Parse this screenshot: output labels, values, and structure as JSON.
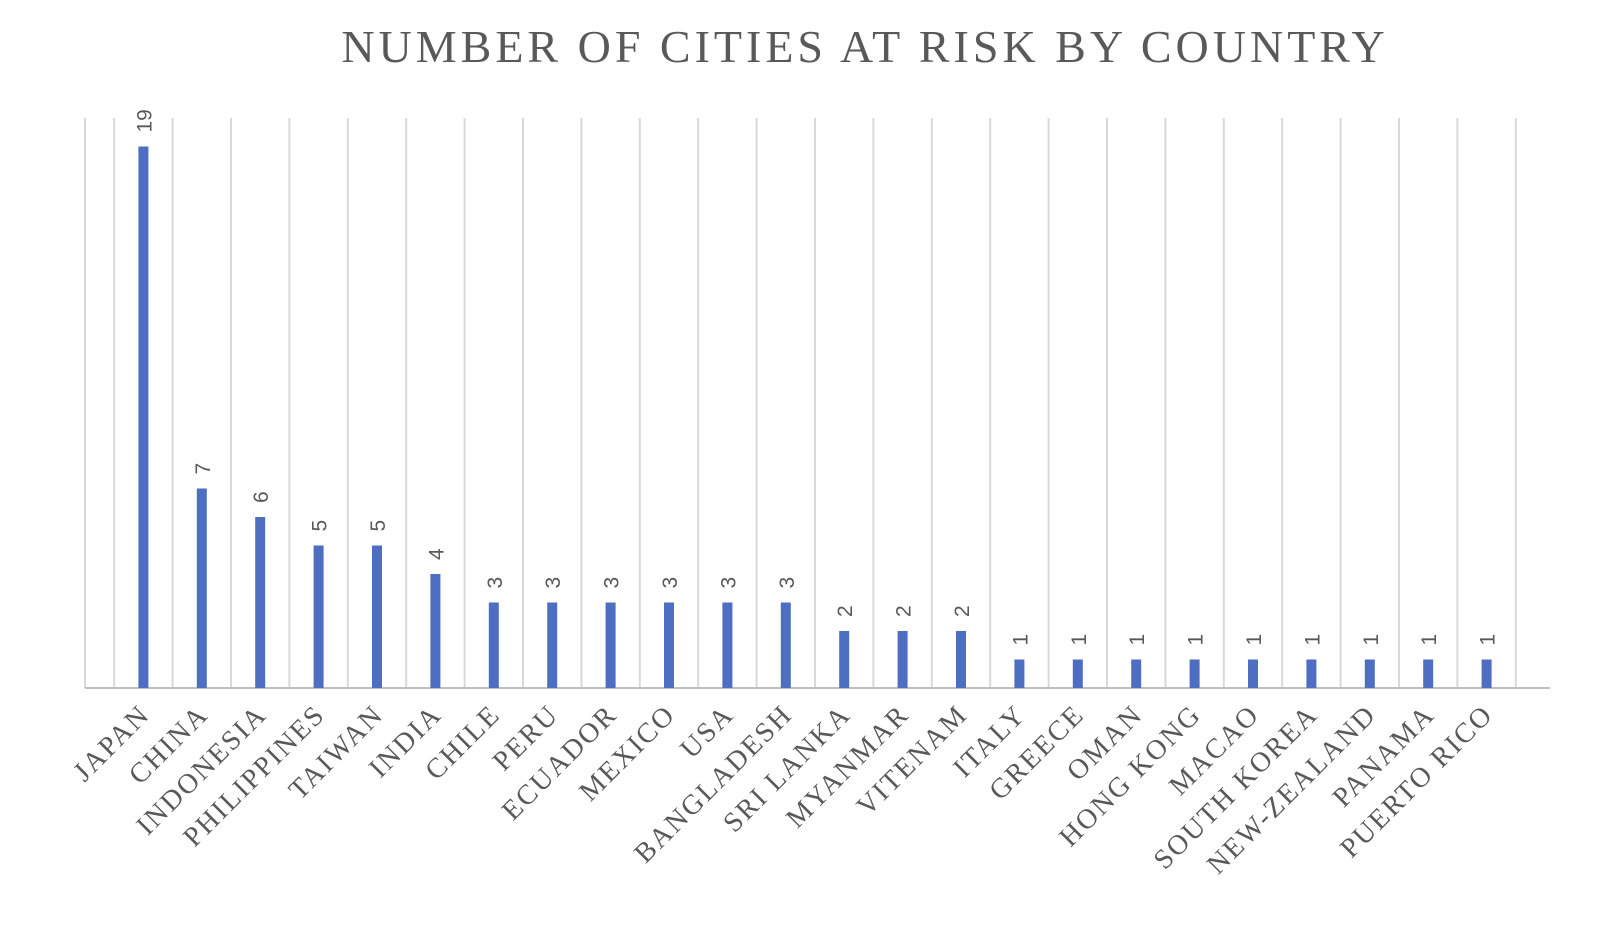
{
  "chart_data": {
    "type": "bar",
    "title": "NUMBER OF CITIES AT RISK BY COUNTRY",
    "xlabel": "",
    "ylabel": "",
    "categories": [
      "JAPAN",
      "CHINA",
      "INDONESIA",
      "PHILIPPINES",
      "TAIWAN",
      "INDIA",
      "CHILE",
      "PERU",
      "ECUADOR",
      "MEXICO",
      "USA",
      "BANGLADESH",
      "SRI LANKA",
      "MYANMAR",
      "VITENAM",
      "ITALY",
      "GREECE",
      "OMAN",
      "HONG KONG",
      "MACAO",
      "SOUTH KOREA",
      "NEW-ZEALAND",
      "PANAMA",
      "PUERTO RICO"
    ],
    "values": [
      19,
      7,
      6,
      5,
      5,
      4,
      3,
      3,
      3,
      3,
      3,
      3,
      2,
      2,
      2,
      1,
      1,
      1,
      1,
      1,
      1,
      1,
      1,
      1
    ],
    "ylim": [
      0,
      20
    ],
    "grid": true,
    "gridlines": "vertical",
    "legend": "none",
    "data_labels": true,
    "colors": {
      "bar": "#4E6EC1",
      "grid": "#D9D9D9",
      "axis": "#BFBFBF",
      "text": "#595959"
    }
  }
}
